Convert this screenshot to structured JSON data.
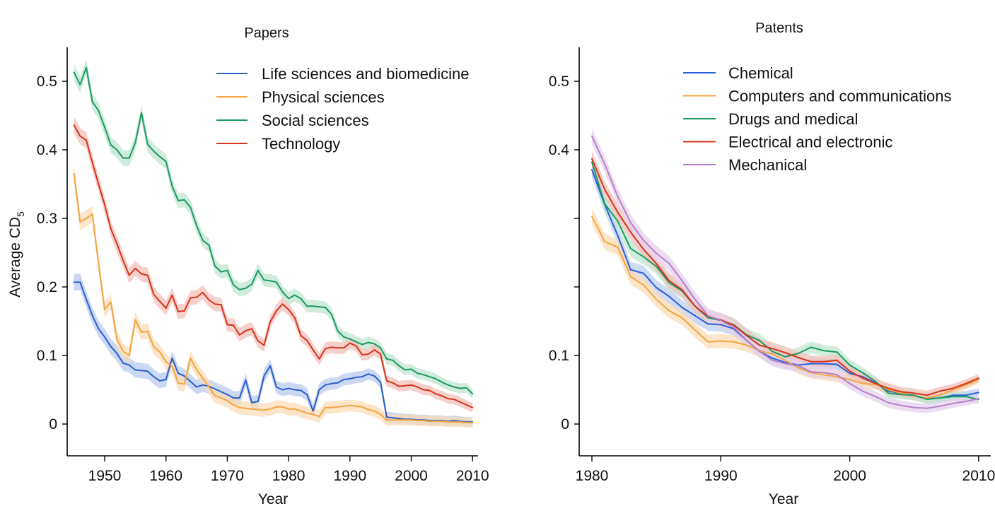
{
  "chart_data": [
    {
      "type": "line",
      "title": "Papers",
      "xlabel": "Year",
      "ylabel": "Average CD",
      "ylabel_subscript": "5",
      "xlim": [
        1944,
        2011
      ],
      "ylim": [
        -0.05,
        0.55
      ],
      "xticks": [
        1950,
        1960,
        1970,
        1980,
        1990,
        2000,
        2010
      ],
      "xtick_labels": [
        "1950",
        "1960",
        "1970",
        "1980",
        "1990",
        "2000",
        "2010"
      ],
      "yticks": [
        0,
        0.1,
        0.2,
        0.3,
        0.4,
        0.5
      ],
      "ytick_labels": [
        "0",
        "0.1",
        "0.2",
        "0.3",
        "0.4",
        "0.5"
      ],
      "grid": false,
      "legend_position": "top-right",
      "x_start": 1945,
      "series": [
        {
          "name": "Life sciences and biomedicine",
          "color": "#2a5fc9",
          "band_color": "#b9cbf0",
          "values": [
            0.207,
            0.207,
            0.182,
            0.158,
            0.139,
            0.127,
            0.113,
            0.103,
            0.089,
            0.086,
            0.079,
            0.078,
            0.077,
            0.069,
            0.063,
            0.065,
            0.096,
            0.074,
            0.07,
            0.062,
            0.054,
            0.057,
            0.055,
            0.051,
            0.047,
            0.043,
            0.038,
            0.038,
            0.064,
            0.031,
            0.033,
            0.07,
            0.085,
            0.054,
            0.05,
            0.052,
            0.05,
            0.049,
            0.043,
            0.019,
            0.05,
            0.057,
            0.059,
            0.06,
            0.065,
            0.066,
            0.068,
            0.069,
            0.073,
            0.07,
            0.061,
            0.01,
            0.009,
            0.008,
            0.007,
            0.007,
            0.006,
            0.006,
            0.005,
            0.005,
            0.005,
            0.004,
            0.005,
            0.004,
            0.003,
            0.003
          ]
        },
        {
          "name": "Physical sciences",
          "color": "#f2a541",
          "band_color": "#fbdcb5",
          "values": [
            0.365,
            0.295,
            0.3,
            0.306,
            0.234,
            0.167,
            0.178,
            0.124,
            0.106,
            0.1,
            0.152,
            0.134,
            0.135,
            0.113,
            0.105,
            0.091,
            0.084,
            0.06,
            0.058,
            0.096,
            0.079,
            0.067,
            0.054,
            0.041,
            0.038,
            0.034,
            0.028,
            0.024,
            0.023,
            0.022,
            0.021,
            0.02,
            0.022,
            0.025,
            0.025,
            0.022,
            0.022,
            0.019,
            0.016,
            0.014,
            0.011,
            0.024,
            0.024,
            0.025,
            0.026,
            0.027,
            0.026,
            0.025,
            0.021,
            0.019,
            0.014,
            0.006,
            0.006,
            0.006,
            0.006,
            0.006,
            0.005,
            0.005,
            0.004,
            0.004,
            0.004,
            0.003,
            0.003,
            0.003,
            0.002,
            0.002
          ]
        },
        {
          "name": "Social sciences",
          "color": "#1d9a62",
          "band_color": "#bfe6d2",
          "values": [
            0.513,
            0.495,
            0.52,
            0.47,
            0.457,
            0.433,
            0.407,
            0.4,
            0.388,
            0.388,
            0.41,
            0.454,
            0.408,
            0.398,
            0.39,
            0.383,
            0.347,
            0.326,
            0.327,
            0.316,
            0.289,
            0.268,
            0.261,
            0.23,
            0.222,
            0.224,
            0.203,
            0.196,
            0.198,
            0.204,
            0.224,
            0.21,
            0.209,
            0.207,
            0.193,
            0.183,
            0.188,
            0.183,
            0.172,
            0.172,
            0.171,
            0.17,
            0.16,
            0.136,
            0.127,
            0.124,
            0.12,
            0.116,
            0.119,
            0.117,
            0.111,
            0.095,
            0.093,
            0.085,
            0.079,
            0.08,
            0.074,
            0.072,
            0.069,
            0.066,
            0.061,
            0.057,
            0.054,
            0.052,
            0.053,
            0.044
          ]
        },
        {
          "name": "Technology",
          "color": "#d6341c",
          "band_color": "#f3c2bb",
          "values": [
            0.436,
            0.42,
            0.414,
            0.381,
            0.35,
            0.32,
            0.285,
            0.263,
            0.239,
            0.217,
            0.227,
            0.219,
            0.217,
            0.189,
            0.179,
            0.169,
            0.188,
            0.164,
            0.165,
            0.184,
            0.185,
            0.192,
            0.181,
            0.175,
            0.174,
            0.145,
            0.144,
            0.13,
            0.136,
            0.139,
            0.121,
            0.115,
            0.149,
            0.165,
            0.175,
            0.167,
            0.155,
            0.129,
            0.122,
            0.108,
            0.095,
            0.11,
            0.112,
            0.111,
            0.111,
            0.118,
            0.114,
            0.101,
            0.102,
            0.108,
            0.102,
            0.063,
            0.06,
            0.055,
            0.056,
            0.057,
            0.054,
            0.05,
            0.049,
            0.044,
            0.041,
            0.037,
            0.036,
            0.032,
            0.028,
            0.024
          ]
        }
      ]
    },
    {
      "type": "line",
      "title": "Patents",
      "xlabel": "Year",
      "ylabel": "",
      "xlim": [
        1979,
        2011
      ],
      "ylim": [
        -0.05,
        0.55
      ],
      "xticks": [
        1980,
        1990,
        2000,
        2010
      ],
      "xtick_labels": [
        "1980",
        "1990",
        "2000",
        "2010"
      ],
      "yticks": [
        0,
        0.1,
        0.2,
        0.3,
        0.4,
        0.5
      ],
      "ytick_labels": [
        "0",
        "0.1",
        "",
        "",
        "0.4",
        "0.5"
      ],
      "grid": false,
      "legend_position": "top-center",
      "x_start": 1980,
      "series": [
        {
          "name": "Chemical",
          "color": "#2a5fd9",
          "band_color": "#bfcdf2",
          "values": [
            0.371,
            0.32,
            0.275,
            0.225,
            0.22,
            0.199,
            0.186,
            0.17,
            0.158,
            0.146,
            0.145,
            0.139,
            0.122,
            0.106,
            0.096,
            0.09,
            0.086,
            0.088,
            0.088,
            0.087,
            0.074,
            0.069,
            0.06,
            0.048,
            0.045,
            0.041,
            0.037,
            0.038,
            0.042,
            0.042,
            0.046
          ]
        },
        {
          "name": "Computers and communications",
          "color": "#f2a541",
          "band_color": "#fbdcb5",
          "values": [
            0.303,
            0.266,
            0.258,
            0.215,
            0.203,
            0.182,
            0.165,
            0.155,
            0.137,
            0.12,
            0.121,
            0.12,
            0.115,
            0.107,
            0.102,
            0.093,
            0.082,
            0.075,
            0.072,
            0.069,
            0.065,
            0.059,
            0.058,
            0.05,
            0.045,
            0.041,
            0.038,
            0.042,
            0.05,
            0.057,
            0.065
          ]
        },
        {
          "name": "Drugs and medical",
          "color": "#1d9a62",
          "band_color": "#bfe6d2",
          "values": [
            0.382,
            0.321,
            0.296,
            0.256,
            0.244,
            0.23,
            0.206,
            0.194,
            0.172,
            0.155,
            0.151,
            0.145,
            0.13,
            0.122,
            0.106,
            0.098,
            0.103,
            0.112,
            0.107,
            0.105,
            0.086,
            0.075,
            0.062,
            0.045,
            0.043,
            0.042,
            0.036,
            0.038,
            0.04,
            0.04,
            0.036
          ]
        },
        {
          "name": "Electrical and electronic",
          "color": "#d6341c",
          "band_color": "#f3c2bb",
          "values": [
            0.387,
            0.342,
            0.309,
            0.28,
            0.255,
            0.234,
            0.209,
            0.196,
            0.172,
            0.157,
            0.152,
            0.144,
            0.129,
            0.115,
            0.11,
            0.104,
            0.097,
            0.091,
            0.091,
            0.093,
            0.077,
            0.067,
            0.059,
            0.052,
            0.047,
            0.045,
            0.042,
            0.048,
            0.052,
            0.059,
            0.067
          ]
        },
        {
          "name": "Mechanical",
          "color": "#b77fc9",
          "band_color": "#e6d3ec",
          "values": [
            0.42,
            0.379,
            0.332,
            0.294,
            0.268,
            0.249,
            0.234,
            0.209,
            0.182,
            0.158,
            0.151,
            0.141,
            0.122,
            0.106,
            0.093,
            0.088,
            0.085,
            0.076,
            0.075,
            0.072,
            0.059,
            0.048,
            0.04,
            0.031,
            0.027,
            0.024,
            0.023,
            0.026,
            0.03,
            0.033,
            0.037
          ]
        }
      ]
    }
  ]
}
